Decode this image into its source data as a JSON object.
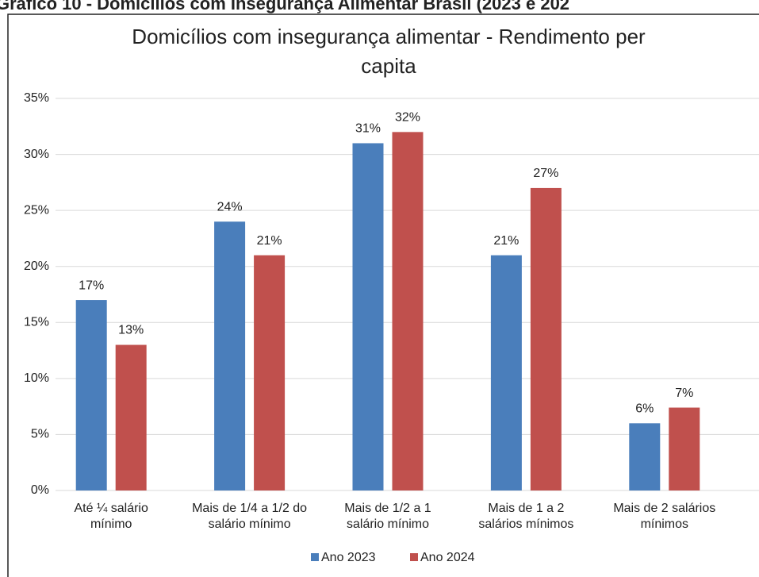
{
  "header": "Gráfico 10 - Domicílios com Insegurança Alimentar Brasil (2023 e 202",
  "chart_data": {
    "type": "bar",
    "title": [
      "Domicílios com insegurança alimentar - Rendimento per",
      "capita"
    ],
    "categories": [
      [
        "Até ¼ salário",
        "mínimo"
      ],
      [
        "Mais de 1/4 a 1/2 do",
        "salário mínimo"
      ],
      [
        "Mais de 1/2 a 1",
        "salário mínimo"
      ],
      [
        "Mais de 1 a 2",
        "salários mínimos"
      ],
      [
        "Mais de 2 salários",
        "mínimos"
      ]
    ],
    "series": [
      {
        "name": "Ano 2023",
        "color": "#4a7ebb",
        "values": [
          17,
          24,
          31,
          21,
          6
        ],
        "value_labels": [
          "17%",
          "24%",
          "31%",
          "21%",
          "6%"
        ]
      },
      {
        "name": "Ano 2024",
        "color": "#c0504d",
        "values": [
          13,
          21,
          32,
          27,
          7.4
        ],
        "value_labels": [
          "13%",
          "21%",
          "32%",
          "27%",
          "7%"
        ]
      }
    ],
    "ylim": [
      0,
      35
    ],
    "yticks": [
      {
        "value": 0,
        "label": "0%"
      },
      {
        "value": 5,
        "label": "5%"
      },
      {
        "value": 10,
        "label": "10%"
      },
      {
        "value": 15,
        "label": "15%"
      },
      {
        "value": 20,
        "label": "20%"
      },
      {
        "value": 25,
        "label": "25%"
      },
      {
        "value": 30,
        "label": "30%"
      },
      {
        "value": 35,
        "label": "35%"
      }
    ],
    "grid": true,
    "legend": "bottom"
  }
}
